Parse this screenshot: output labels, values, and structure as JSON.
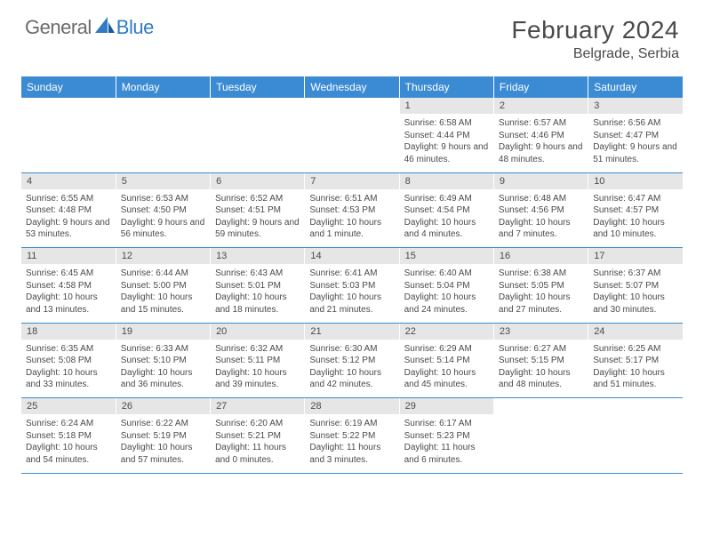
{
  "logo": {
    "general": "General",
    "blue": "Blue"
  },
  "title": "February 2024",
  "location": "Belgrade, Serbia",
  "colors": {
    "header_bg": "#3b8bd4",
    "header_text": "#ffffff",
    "daynum_bg": "#e6e6e6",
    "text": "#4a4a4a",
    "rule": "#3b8bd4",
    "logo_blue": "#2f7cc4",
    "logo_gray": "#6b6b6b"
  },
  "weekdays": [
    "Sunday",
    "Monday",
    "Tuesday",
    "Wednesday",
    "Thursday",
    "Friday",
    "Saturday"
  ],
  "weeks": [
    [
      null,
      null,
      null,
      null,
      {
        "n": "1",
        "sr": "6:58 AM",
        "ss": "4:44 PM",
        "dl": "9 hours and 46 minutes."
      },
      {
        "n": "2",
        "sr": "6:57 AM",
        "ss": "4:46 PM",
        "dl": "9 hours and 48 minutes."
      },
      {
        "n": "3",
        "sr": "6:56 AM",
        "ss": "4:47 PM",
        "dl": "9 hours and 51 minutes."
      }
    ],
    [
      {
        "n": "4",
        "sr": "6:55 AM",
        "ss": "4:48 PM",
        "dl": "9 hours and 53 minutes."
      },
      {
        "n": "5",
        "sr": "6:53 AM",
        "ss": "4:50 PM",
        "dl": "9 hours and 56 minutes."
      },
      {
        "n": "6",
        "sr": "6:52 AM",
        "ss": "4:51 PM",
        "dl": "9 hours and 59 minutes."
      },
      {
        "n": "7",
        "sr": "6:51 AM",
        "ss": "4:53 PM",
        "dl": "10 hours and 1 minute."
      },
      {
        "n": "8",
        "sr": "6:49 AM",
        "ss": "4:54 PM",
        "dl": "10 hours and 4 minutes."
      },
      {
        "n": "9",
        "sr": "6:48 AM",
        "ss": "4:56 PM",
        "dl": "10 hours and 7 minutes."
      },
      {
        "n": "10",
        "sr": "6:47 AM",
        "ss": "4:57 PM",
        "dl": "10 hours and 10 minutes."
      }
    ],
    [
      {
        "n": "11",
        "sr": "6:45 AM",
        "ss": "4:58 PM",
        "dl": "10 hours and 13 minutes."
      },
      {
        "n": "12",
        "sr": "6:44 AM",
        "ss": "5:00 PM",
        "dl": "10 hours and 15 minutes."
      },
      {
        "n": "13",
        "sr": "6:43 AM",
        "ss": "5:01 PM",
        "dl": "10 hours and 18 minutes."
      },
      {
        "n": "14",
        "sr": "6:41 AM",
        "ss": "5:03 PM",
        "dl": "10 hours and 21 minutes."
      },
      {
        "n": "15",
        "sr": "6:40 AM",
        "ss": "5:04 PM",
        "dl": "10 hours and 24 minutes."
      },
      {
        "n": "16",
        "sr": "6:38 AM",
        "ss": "5:05 PM",
        "dl": "10 hours and 27 minutes."
      },
      {
        "n": "17",
        "sr": "6:37 AM",
        "ss": "5:07 PM",
        "dl": "10 hours and 30 minutes."
      }
    ],
    [
      {
        "n": "18",
        "sr": "6:35 AM",
        "ss": "5:08 PM",
        "dl": "10 hours and 33 minutes."
      },
      {
        "n": "19",
        "sr": "6:33 AM",
        "ss": "5:10 PM",
        "dl": "10 hours and 36 minutes."
      },
      {
        "n": "20",
        "sr": "6:32 AM",
        "ss": "5:11 PM",
        "dl": "10 hours and 39 minutes."
      },
      {
        "n": "21",
        "sr": "6:30 AM",
        "ss": "5:12 PM",
        "dl": "10 hours and 42 minutes."
      },
      {
        "n": "22",
        "sr": "6:29 AM",
        "ss": "5:14 PM",
        "dl": "10 hours and 45 minutes."
      },
      {
        "n": "23",
        "sr": "6:27 AM",
        "ss": "5:15 PM",
        "dl": "10 hours and 48 minutes."
      },
      {
        "n": "24",
        "sr": "6:25 AM",
        "ss": "5:17 PM",
        "dl": "10 hours and 51 minutes."
      }
    ],
    [
      {
        "n": "25",
        "sr": "6:24 AM",
        "ss": "5:18 PM",
        "dl": "10 hours and 54 minutes."
      },
      {
        "n": "26",
        "sr": "6:22 AM",
        "ss": "5:19 PM",
        "dl": "10 hours and 57 minutes."
      },
      {
        "n": "27",
        "sr": "6:20 AM",
        "ss": "5:21 PM",
        "dl": "11 hours and 0 minutes."
      },
      {
        "n": "28",
        "sr": "6:19 AM",
        "ss": "5:22 PM",
        "dl": "11 hours and 3 minutes."
      },
      {
        "n": "29",
        "sr": "6:17 AM",
        "ss": "5:23 PM",
        "dl": "11 hours and 6 minutes."
      },
      null,
      null
    ]
  ],
  "labels": {
    "sunrise": "Sunrise:",
    "sunset": "Sunset:",
    "daylight": "Daylight:"
  }
}
